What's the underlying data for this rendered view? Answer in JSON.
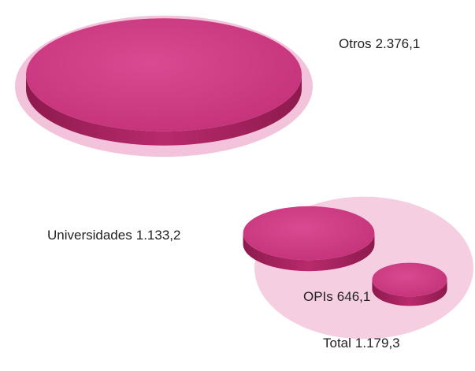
{
  "chart_data": {
    "type": "bubble",
    "categories": [
      "Otros",
      "Universidades",
      "OPIs",
      "Total"
    ],
    "values": [
      2376.1,
      1133.2,
      646.1,
      1179.3
    ],
    "value_labels": [
      "2.376,1",
      "1.133,2",
      "646,1",
      "1.179,3"
    ],
    "color": "#c8327a"
  }
}
